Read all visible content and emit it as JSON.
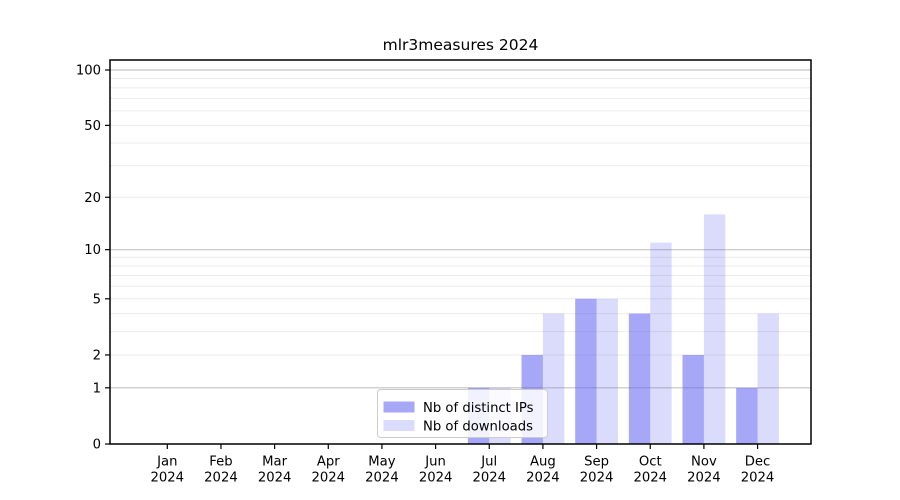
{
  "figure": {
    "background": "#ffffff"
  },
  "chart_data": {
    "type": "bar",
    "title": "mlr3measures 2024",
    "categories": [
      "Jan",
      "Feb",
      "Mar",
      "Apr",
      "May",
      "Jun",
      "Jul",
      "Aug",
      "Sep",
      "Oct",
      "Nov",
      "Dec"
    ],
    "year": "2024",
    "series": [
      {
        "name": "Nb of distinct IPs",
        "key": "distinct-ips",
        "color": "rgba(92,92,242,0.54)",
        "values": [
          0,
          0,
          0,
          0,
          0,
          0,
          1,
          2,
          5,
          4,
          2,
          1
        ]
      },
      {
        "name": "Nb of downloads",
        "key": "downloads",
        "color": "rgba(92,92,242,0.22)",
        "values": [
          0,
          0,
          0,
          0,
          0,
          0,
          1,
          4,
          5,
          11,
          16,
          4
        ]
      }
    ],
    "xlabel": "",
    "ylabel": "",
    "yscale": "log1p",
    "ylim": [
      0,
      113
    ],
    "yticks": [
      0,
      1,
      2,
      5,
      10,
      20,
      50,
      100
    ],
    "major_gridlines": [
      1,
      10,
      100
    ],
    "minor_gridlines": [
      2,
      3,
      4,
      5,
      6,
      7,
      8,
      9,
      20,
      30,
      40,
      50,
      60,
      70,
      80,
      90
    ],
    "grid": true,
    "legend": {
      "position": "bottom-center",
      "entries": [
        "Nb of distinct IPs",
        "Nb of downloads"
      ]
    },
    "colors": {
      "major_grid": "#c4c4c4",
      "minor_grid": "#ebebeb",
      "axis": "#000000",
      "text": "#000000",
      "legend_border": "#cccccc",
      "legend_bg": "rgba(255,255,255,0.85)"
    }
  }
}
